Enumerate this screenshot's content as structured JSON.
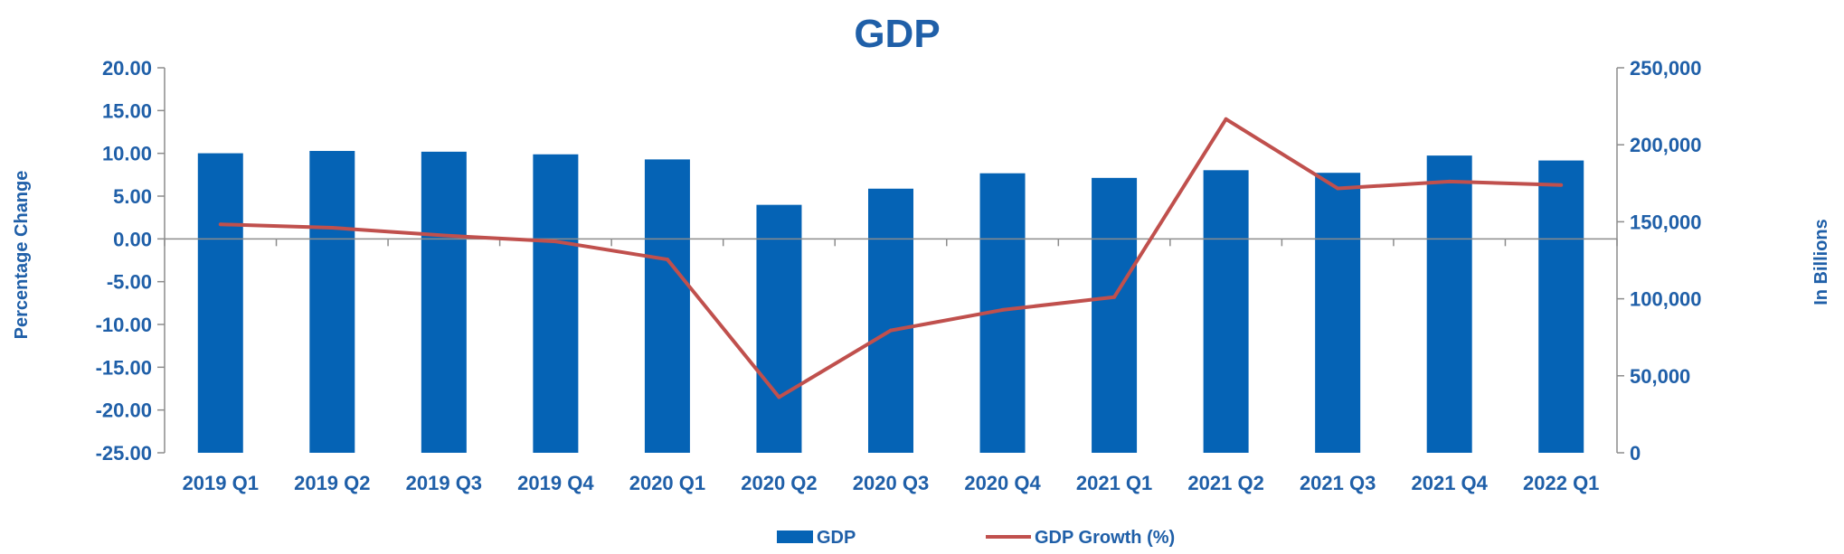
{
  "chart_data": {
    "type": "bar",
    "title": "GDP",
    "categories": [
      "2019 Q1",
      "2019 Q2",
      "2019 Q3",
      "2019 Q4",
      "2020 Q1",
      "2020 Q2",
      "2020 Q3",
      "2020 Q4",
      "2021 Q1",
      "2021 Q2",
      "2021 Q3",
      "2021 Q4",
      "2022 Q1"
    ],
    "series": [
      {
        "name": "GDP",
        "type": "bar",
        "axis": "right",
        "color": "#0563b5",
        "values": [
          194500,
          196000,
          195500,
          193800,
          190500,
          161000,
          171500,
          181500,
          178500,
          183500,
          181800,
          193000,
          189800
        ]
      },
      {
        "name": "GDP Growth (%)",
        "type": "line",
        "axis": "left",
        "color": "#c0504d",
        "values": [
          1.7,
          1.3,
          0.4,
          -0.3,
          -2.4,
          -18.5,
          -10.7,
          -8.3,
          -6.8,
          14.0,
          5.9,
          6.7,
          6.3
        ]
      }
    ],
    "y_left": {
      "label": "Percentage Change",
      "range": [
        -25,
        20
      ],
      "ticks": [
        "20.00",
        "15.00",
        "10.00",
        "5.00",
        "0.00",
        "-5.00",
        "-10.00",
        "-15.00",
        "-20.00",
        "-25.00"
      ]
    },
    "y_right": {
      "label": "In Billions",
      "range": [
        0,
        250000
      ],
      "ticks": [
        "250,000",
        "200,000",
        "150,000",
        "100,000",
        "50,000",
        "0"
      ]
    },
    "grid": false,
    "legend_placement": "bottom"
  }
}
